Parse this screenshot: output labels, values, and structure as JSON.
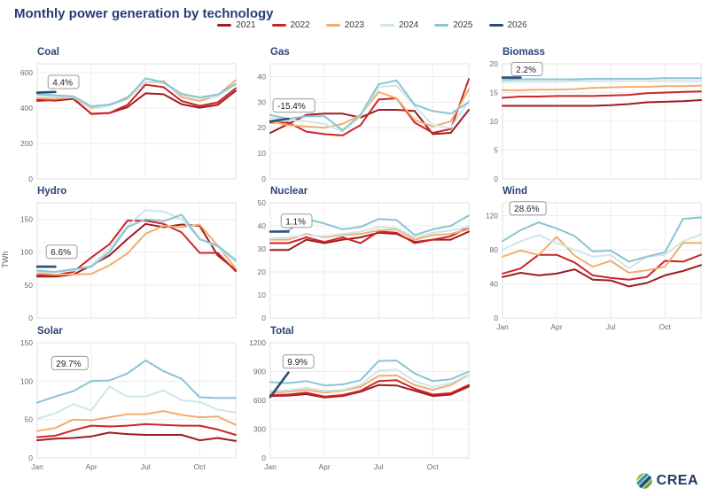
{
  "header": {
    "title": "Monthly power generation by technology"
  },
  "legend": {
    "position": "top-center",
    "items": [
      {
        "label": "2021",
        "color": "#9e1b21"
      },
      {
        "label": "2022",
        "color": "#cc2529"
      },
      {
        "label": "2023",
        "color": "#f0ae6e"
      },
      {
        "label": "2024",
        "color": "#cfe6e8"
      },
      {
        "label": "2025",
        "color": "#8ac4d4"
      },
      {
        "label": "2026",
        "color": "#2e4d74"
      }
    ]
  },
  "ylabel": "TWh",
  "colors": {
    "title": "#263d74",
    "chart_title": "#2d4379",
    "tick": "#6b6b6b",
    "grid": "#ececee",
    "panel_border": "#e2e2e6",
    "badge_border": "#9a9a9a",
    "badge_text": "#1c1c2e"
  },
  "footer": {
    "logo_text": "CREA"
  },
  "chart_data": {
    "months": [
      "Jan",
      "Feb",
      "Mar",
      "Apr",
      "May",
      "Jun",
      "Jul",
      "Aug",
      "Sep",
      "Oct",
      "Nov",
      "Dec"
    ],
    "xtick_labels": [
      "Jan",
      "Apr",
      "Jul",
      "Oct"
    ],
    "charts": [
      {
        "type": "line",
        "title": "Coal",
        "annotation": "4.4%",
        "ylim": [
          0,
          650
        ],
        "yticks": [
          0,
          200,
          400,
          600
        ],
        "badge_anchor": {
          "month": 0.6,
          "value": 545
        },
        "series": [
          {
            "name": "2021",
            "values": [
              447,
              442,
              452,
              368,
              372,
              405,
              483,
              478,
              422,
              402,
              418,
              497
            ]
          },
          {
            "name": "2022",
            "values": [
              440,
              446,
              457,
              366,
              372,
              418,
              532,
              518,
              440,
              412,
              432,
              512
            ]
          },
          {
            "name": "2023",
            "values": [
              455,
              452,
              462,
              400,
              415,
              462,
              545,
              552,
              462,
              440,
              472,
              557
            ]
          },
          {
            "name": "2024",
            "values": [
              468,
              464,
              460,
              406,
              412,
              452,
              548,
              540,
              474,
              456,
              466,
              540
            ]
          },
          {
            "name": "2025",
            "values": [
              478,
              472,
              466,
              410,
              420,
              456,
              568,
              545,
              480,
              460,
              476,
              535
            ]
          },
          {
            "name": "2026",
            "values": [
              487,
              491
            ]
          }
        ]
      },
      {
        "type": "line",
        "title": "Gas",
        "annotation": "-15.4%",
        "ylim": [
          0,
          45
        ],
        "yticks": [
          0,
          10,
          20,
          30,
          40
        ],
        "badge_anchor": {
          "month": 0.15,
          "value": 28.5
        },
        "series": [
          {
            "name": "2021",
            "values": [
              18,
              21.5,
              25,
              25.5,
              25.5,
              24,
              27,
              27,
              26.5,
              17.5,
              18,
              27
            ]
          },
          {
            "name": "2022",
            "values": [
              22,
              22,
              18.5,
              17.5,
              17,
              21,
              31,
              31.5,
              22,
              18,
              19.5,
              39
            ]
          },
          {
            "name": "2023",
            "values": [
              22.5,
              21,
              20.5,
              20,
              21.5,
              25,
              34,
              31.5,
              23,
              20.5,
              22.5,
              35
            ]
          },
          {
            "name": "2024",
            "values": [
              24,
              23,
              22.5,
              21.5,
              18.5,
              24.5,
              36,
              36.5,
              28.5,
              21,
              20,
              30.5
            ]
          },
          {
            "name": "2025",
            "values": [
              25,
              23.5,
              24.5,
              24.5,
              19,
              25,
              37,
              38.5,
              29,
              26.5,
              25.5,
              30
            ]
          },
          {
            "name": "2026",
            "values": [
              22.5,
              23.5
            ]
          }
        ]
      },
      {
        "type": "line",
        "title": "Biomass",
        "annotation": "2.2%",
        "ylim": [
          0,
          20
        ],
        "yticks": [
          0,
          5,
          10,
          15,
          20
        ],
        "badge_anchor": {
          "month": 0.5,
          "value": 19
        },
        "series": [
          {
            "name": "2021",
            "values": [
              12.7,
              12.7,
              12.7,
              12.7,
              12.7,
              12.7,
              12.8,
              13,
              13.3,
              13.4,
              13.5,
              13.7
            ]
          },
          {
            "name": "2022",
            "values": [
              14.1,
              14.3,
              14.3,
              14.4,
              14.4,
              14.4,
              14.5,
              14.6,
              14.9,
              15,
              15.1,
              15.2
            ]
          },
          {
            "name": "2023",
            "values": [
              15.4,
              15.4,
              15.5,
              15.5,
              15.6,
              15.8,
              15.9,
              16,
              16,
              16.1,
              16.1,
              16.2
            ]
          },
          {
            "name": "2024",
            "values": [
              16.8,
              16.9,
              16.9,
              16.9,
              17,
              17,
              17,
              17,
              17,
              17,
              17,
              17
            ]
          },
          {
            "name": "2025",
            "values": [
              17.2,
              17.3,
              17.3,
              17.3,
              17.3,
              17.4,
              17.4,
              17.4,
              17.4,
              17.5,
              17.5,
              17.5
            ]
          },
          {
            "name": "2026",
            "values": [
              17.6,
              17.6
            ]
          }
        ]
      },
      {
        "type": "line",
        "title": "Hydro",
        "annotation": "6.6%",
        "ylim": [
          0,
          175
        ],
        "yticks": [
          0,
          50,
          100,
          150
        ],
        "badge_anchor": {
          "month": 0.5,
          "value": 100
        },
        "series": [
          {
            "name": "2021",
            "values": [
              63,
              63,
              66,
              80,
              95,
              120,
              143,
              138,
              142,
              140,
              95,
              73
            ]
          },
          {
            "name": "2022",
            "values": [
              65,
              65,
              70,
              92,
              112,
              148,
              148,
              143,
              130,
              99,
              99,
              71
            ]
          },
          {
            "name": "2023",
            "values": [
              68,
              66,
              66,
              67,
              80,
              98,
              128,
              140,
              138,
              142,
              110,
              75
            ]
          },
          {
            "name": "2024",
            "values": [
              70,
              70,
              72,
              80,
              105,
              140,
              164,
              162,
              150,
              120,
              108,
              85
            ]
          },
          {
            "name": "2025",
            "values": [
              72,
              70,
              74,
              78,
              100,
              138,
              150,
              147,
              157,
              120,
              110,
              88
            ]
          },
          {
            "name": "2026",
            "values": [
              78,
              78
            ]
          }
        ]
      },
      {
        "type": "line",
        "title": "Nuclear",
        "annotation": "1.1%",
        "ylim": [
          0,
          50
        ],
        "yticks": [
          0,
          10,
          20,
          30,
          40,
          50
        ],
        "badge_anchor": {
          "month": 0.6,
          "value": 42
        },
        "series": [
          {
            "name": "2021",
            "values": [
              29.5,
              29.5,
              34,
              32.5,
              34,
              35,
              37,
              36.5,
              33,
              34,
              34,
              37.5
            ]
          },
          {
            "name": "2022",
            "values": [
              32.5,
              32.5,
              35,
              33,
              35,
              32.5,
              37.5,
              37,
              32.5,
              34,
              35.5,
              39.5
            ]
          },
          {
            "name": "2023",
            "values": [
              34,
              34,
              36.5,
              35,
              36,
              36.5,
              38,
              38.5,
              34,
              36,
              36.5,
              38.5
            ]
          },
          {
            "name": "2024",
            "values": [
              34.5,
              35,
              36,
              35.5,
              36.5,
              37.5,
              39.5,
              39,
              35,
              37,
              38,
              39.5
            ]
          },
          {
            "name": "2025",
            "values": [
              37.5,
              38,
              43,
              41,
              38.5,
              39.5,
              43,
              42.5,
              36,
              38.5,
              40,
              44.5
            ]
          },
          {
            "name": "2026",
            "values": [
              37.5,
              37.5
            ]
          }
        ]
      },
      {
        "type": "line",
        "title": "Wind",
        "annotation": "28.6%",
        "ylim": [
          0,
          135
        ],
        "yticks": [
          0,
          40,
          80,
          120
        ],
        "badge_anchor": {
          "month": 0.4,
          "value": 128
        },
        "series": [
          {
            "name": "2021",
            "values": [
              48,
              53,
              50,
              52,
              57,
              45,
              44,
              37,
              41,
              50,
              55,
              62
            ]
          },
          {
            "name": "2022",
            "values": [
              52,
              58,
              74,
              74,
              65,
              50,
              47,
              45,
              48,
              67,
              66,
              74
            ]
          },
          {
            "name": "2023",
            "values": [
              72,
              79,
              74,
              95,
              73,
              60,
              67,
              53,
              56,
              60,
              88,
              88
            ]
          },
          {
            "name": "2024",
            "values": [
              80,
              90,
              97,
              88,
              80,
              72,
              74,
              58,
              72,
              74,
              90,
              98
            ]
          },
          {
            "name": "2025",
            "values": [
              90,
              103,
              112,
              105,
              96,
              78,
              79,
              66,
              72,
              77,
              116,
              118
            ]
          },
          {
            "name": "2026",
            "values": []
          }
        ]
      },
      {
        "type": "line",
        "title": "Solar",
        "annotation": "29.7%",
        "ylim": [
          0,
          150
        ],
        "yticks": [
          0,
          50,
          100,
          150
        ],
        "badge_anchor": {
          "month": 0.8,
          "value": 123
        },
        "series": [
          {
            "name": "2021",
            "values": [
              23,
              25,
              26,
              28,
              33,
              31,
              30,
              30,
              30,
              23,
              26,
              22
            ]
          },
          {
            "name": "2022",
            "values": [
              27,
              29,
              36,
              42,
              41,
              42,
              44,
              43,
              42,
              42,
              37,
              30
            ]
          },
          {
            "name": "2023",
            "values": [
              35,
              39,
              50,
              49,
              53,
              57,
              57,
              61,
              56,
              53,
              54,
              43
            ]
          },
          {
            "name": "2024",
            "values": [
              51,
              58,
              70,
              62,
              93,
              80,
              80,
              88,
              75,
              73,
              63,
              59
            ]
          },
          {
            "name": "2025",
            "values": [
              72,
              80,
              87,
              100,
              101,
              110,
              127,
              113,
              103,
              79,
              78,
              78
            ]
          },
          {
            "name": "2026",
            "values": []
          }
        ]
      },
      {
        "type": "line",
        "title": "Total",
        "annotation": "9.9%",
        "ylim": [
          0,
          1200
        ],
        "yticks": [
          0,
          300,
          600,
          900,
          1200
        ],
        "badge_anchor": {
          "month": 0.7,
          "value": 1000
        },
        "series": [
          {
            "name": "2021",
            "values": [
              645,
              650,
              665,
              630,
              645,
              690,
              760,
              755,
              700,
              645,
              660,
              745
            ]
          },
          {
            "name": "2022",
            "values": [
              655,
              660,
              680,
              640,
              655,
              700,
              800,
              810,
              720,
              660,
              675,
              760
            ]
          },
          {
            "name": "2023",
            "values": [
              680,
              690,
              710,
              680,
              700,
              740,
              855,
              860,
              760,
              710,
              760,
              865
            ]
          },
          {
            "name": "2024",
            "values": [
              700,
              705,
              730,
              700,
              710,
              760,
              910,
              920,
              800,
              740,
              780,
              870
            ]
          },
          {
            "name": "2025",
            "values": [
              790,
              780,
              800,
              755,
              765,
              810,
              1010,
              1015,
              880,
              800,
              820,
              900
            ]
          },
          {
            "name": "2026",
            "values": [
              635,
              890
            ]
          }
        ]
      }
    ]
  }
}
